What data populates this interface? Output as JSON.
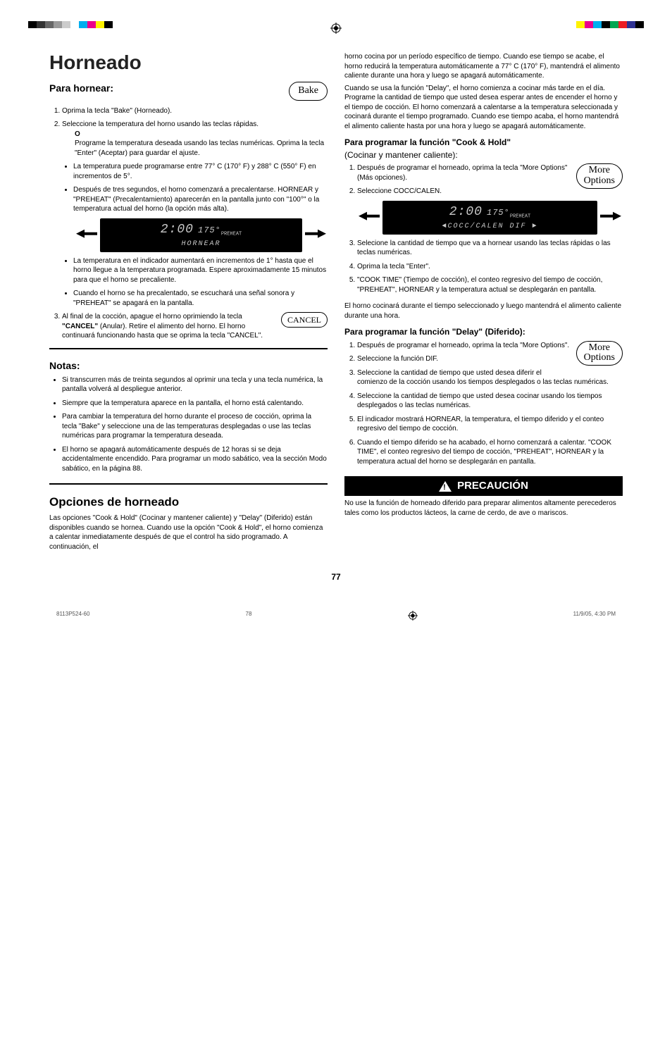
{
  "reg_colors_left": [
    "#000000",
    "#333333",
    "#666666",
    "#999999",
    "#cccccc",
    "#ffffff",
    "#00aeef",
    "#ec008c",
    "#fff200",
    "#000000"
  ],
  "reg_colors_right": [
    "#fff200",
    "#ec008c",
    "#00aeef",
    "#000000",
    "#00a651",
    "#ed1c24",
    "#2e3192",
    "#000000"
  ],
  "title": "Horneado",
  "left": {
    "h_para": "Para hornear:",
    "pill_bake": "Bake",
    "step1": "Oprima la tecla \"Bake\" (Horneado).",
    "step2": "Seleccione la temperatura del horno usando las teclas rápidas.",
    "or_o": "O",
    "or_text": "Programe la temperatura deseada usando las teclas numéricas. Oprima la tecla \"Enter\" (Aceptar) para guardar el ajuste.",
    "b1": "La temperatura puede programarse entre 77° C (170° F) y 288° C (550° F) en incrementos de 5°.",
    "b2": "Después de tres segundos, el horno comenzará a precalentarse. HORNEAR y \"PREHEAT\" (Precalentamiento) aparecerán en la pantalla junto con \"100°\" o la temperatura actual del horno (la opción más alta).",
    "lcd1_time": "2:00",
    "lcd1_temp": "175°",
    "lcd1_sub": "PREHEAT",
    "lcd1_line2": "HORNEAR",
    "b3": "La temperatura en el indicador aumentará en incrementos de 1° hasta que el horno llegue a la temperatura programada. Espere aproximadamente 15 minutos para que el horno se precaliente.",
    "b4": "Cuando el horno se ha precalentado, se escuchará una señal sonora y \"PREHEAT\" se apagará en la pantalla.",
    "step3a": "Al final de la cocción, apague el horno oprimiendo la tecla ",
    "step3b": "\"CANCEL\"",
    "step3c": " (Anular). Retire el alimento del horno.  El horno continuará funcionando hasta que se oprima la tecla \"CANCEL\".",
    "pill_cancel": "CANCEL",
    "notes_h": "Notas:",
    "n1": "Si transcurren más de treinta segundos al oprimir una tecla y una tecla numérica, la pantalla volverá al despliegue anterior.",
    "n2": "Siempre que la temperatura aparece en la pantalla, el horno está calentando.",
    "n3": "Para cambiar la temperatura del horno durante el proceso de cocción, oprima la tecla \"Bake\" y seleccione una de las temperaturas desplegadas o use las teclas numéricas para programar la temperatura deseada.",
    "n4": "El horno se apagará automáticamente después de 12 horas si se deja accidentalmente encendido.  Para programar un modo sabático, vea la sección Modo sabático, en la página 88.",
    "opc_h": "Opciones de horneado",
    "opc_p": "Las opciones \"Cook & Hold\" (Cocinar y mantener caliente) y \"Delay\" (Diferido) están disponibles cuando se hornea.  Cuando use la opción \"Cook & Hold\", el horno comienza a calentar inmediatamente después de que el control ha sido programado.  A continuación, el"
  },
  "right": {
    "cont1": "horno cocina por un período específico de tiempo.  Cuando ese tiempo se acabe, el horno reducirá la temperatura automáticamente a 77° C (170° F), mantendrá el alimento caliente durante una hora y luego se apagará automáticamente.",
    "cont2": "Cuando se usa la función \"Delay\", el horno comienza a cocinar más tarde en el día.  Programe la cantidad de tiempo que usted desea esperar antes de encender el horno y el tiempo de cocción.  El horno comenzará a calentarse a la temperatura seleccionada y cocinará durante el tiempo programado. Cuando ese tiempo acaba, el horno mantendrá el alimento caliente hasta por una hora y luego se apagará automáticamente.",
    "ch_h": "Para programar la función \"Cook & Hold\"",
    "ch_sub": "(Cocinar y mantener caliente):",
    "pill_more": "More\nOptions",
    "ch1": "Después de programar el horneado, oprima la tecla \"More Options\" (Más opciones).",
    "ch2": "Seleccione COCC/CALEN.",
    "lcd2_time": "2:00",
    "lcd2_temp": "175°",
    "lcd2_sub": "PREHEAT",
    "lcd2_line2": "◄COCC/CALEN   DIF ►",
    "ch3": "Selecione la cantidad de tiempo que va a hornear usando las teclas rápidas o las teclas numéricas.",
    "ch4": "Oprima la tecla \"Enter\".",
    "ch5": "\"COOK TIME\" (Tiempo de cocción), el conteo regresivo del tiempo de cocción, \"PREHEAT\", HORNEAR y la temperatura actual se desplegarán en pantalla.",
    "ch_after": "El horno cocinará durante el tiempo seleccionado y luego mantendrá el alimento caliente durante una hora.",
    "d_h": "Para programar la función \"Delay\" (Diferido):",
    "d1": "Después de programar el horneado, oprima la tecla \"More Options\".",
    "d2": "Seleccione la función DIF.",
    "d3": "Seleccione la cantidad de tiempo que usted desea diferir el comienzo de la cocción usando los tiempos desplegados o las teclas numéricas.",
    "d4": "Seleccione la cantidad de tiempo que usted desea cocinar usando los tiempos desplegados o las teclas numéricas.",
    "d5": "El indicador mostrará HORNEAR, la temperatura, el tiempo diferido y el conteo regresivo del tiempo de cocción.",
    "d6": "Cuando el tiempo diferido se ha acabado, el horno comenzará a calentar. \"COOK TIME\", el conteo regresivo del tiempo de cocción, \"PREHEAT\", HORNEAR y la temperatura actual del horno se desplegarán en pantalla.",
    "warn": "PRECAUCIÓN",
    "warn_p": "No use la función de horneado diferido para preparar alimentos altamente perecederos tales como los productos lácteos, la carne de cerdo, de ave o mariscos."
  },
  "page_num": "77",
  "footer_left": "8113P524-60",
  "footer_mid": "78",
  "footer_right": "11/9/05, 4:30 PM"
}
